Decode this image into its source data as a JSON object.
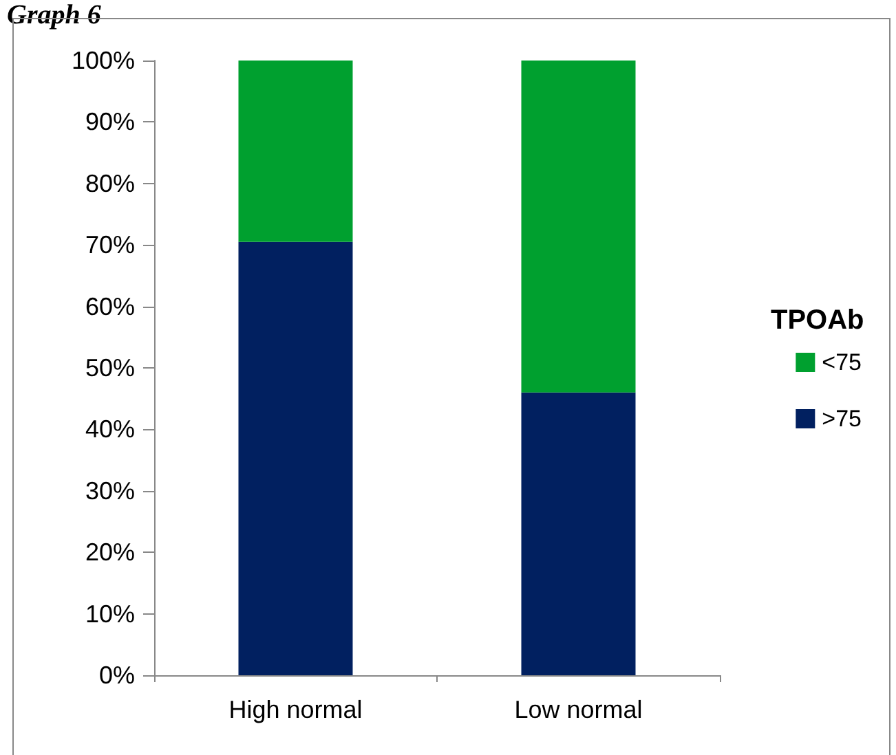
{
  "chart_data": {
    "type": "bar",
    "title": "Graph 6",
    "stacked": true,
    "categories": [
      "High normal",
      "Low normal"
    ],
    "series": [
      {
        "name": ">75",
        "color": "#012060",
        "values": [
          70.5,
          46
        ]
      },
      {
        "name": "<75",
        "color": "#00a02f",
        "values": [
          29.5,
          54
        ]
      }
    ],
    "ylim": [
      0,
      100
    ],
    "yticks": [
      {
        "value": 0,
        "label": "0%"
      },
      {
        "value": 10,
        "label": "10%"
      },
      {
        "value": 20,
        "label": "20%"
      },
      {
        "value": 30,
        "label": "30%"
      },
      {
        "value": 40,
        "label": "40%"
      },
      {
        "value": 50,
        "label": "50%"
      },
      {
        "value": 60,
        "label": "60%"
      },
      {
        "value": 70,
        "label": "70%"
      },
      {
        "value": 80,
        "label": "80%"
      },
      {
        "value": 90,
        "label": "90%"
      },
      {
        "value": 100,
        "label": "100%"
      }
    ],
    "grid": false,
    "legend": "right",
    "legend_title": "TPOAb"
  }
}
